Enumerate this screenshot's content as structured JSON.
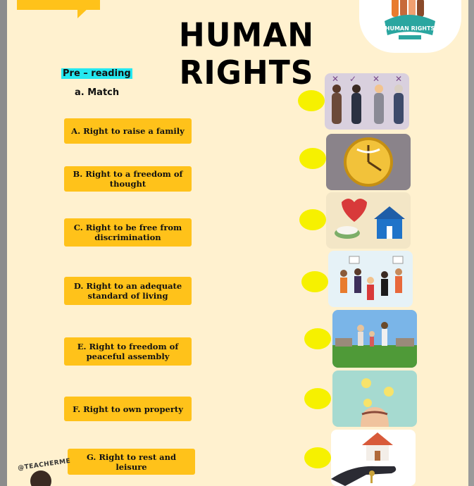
{
  "title": "HUMAN RIGHTS",
  "section_label": "Pre – reading",
  "exercise_label": "a.  Match",
  "logo": {
    "text": "HUMAN RIGHTS",
    "icon": "raised-hands-logo"
  },
  "rights": [
    "A. Right to raise a family",
    "B. Right to a freedom of thought",
    "C. Right to be free from discrimination",
    "D. Right to an adequate standard of living",
    "E. Right to freedom of peaceful assembly",
    "F. Right to own property",
    "G. Right to rest and leisure"
  ],
  "pictures": [
    "discrimination-people-icon",
    "clock-leisure-icon",
    "standard-of-living-icon",
    "protest-assembly-icon",
    "family-outdoors-icon",
    "thought-lightbulbs-icon",
    "house-keys-property-icon"
  ],
  "colors": {
    "page": "#fff1cf",
    "button": "#ffc21a",
    "answer_dot": "#f6f100",
    "highlight": "#24e8f0"
  },
  "stamp": "@TEACHERME"
}
